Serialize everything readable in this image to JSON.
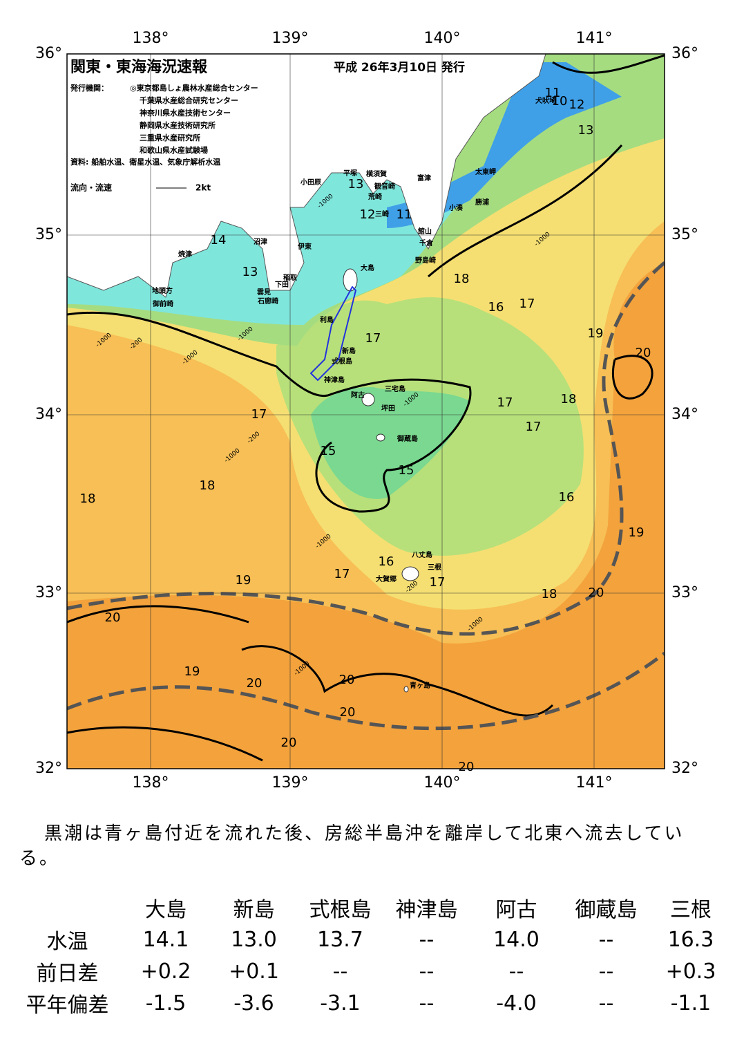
{
  "header": {
    "title": "関東・東海海況速報",
    "date": "平成 26年3月10日 発行",
    "issuer_label": "発行機関：",
    "issuers": [
      "◎東京都島しょ農林水産総合センター",
      "千葉県水産総合研究センター",
      "神奈川県水産技術センター",
      "静岡県水産技術研究所",
      "三重県水産研究所",
      "和歌山県水産試験場"
    ],
    "source": "資料: 船舶水温、衛星水温、気象庁解析水温",
    "legend": "流向・流速",
    "legend_speed": "2kt"
  },
  "map": {
    "lon_labels": [
      "138°",
      "139°",
      "140°",
      "141°"
    ],
    "lat_labels": [
      "36°",
      "35°",
      "34°",
      "33°",
      "32°"
    ],
    "places": [
      "小田原",
      "平塚",
      "横須賀",
      "観音崎",
      "富津",
      "太東岬",
      "荒崎",
      "三崎",
      "小湊",
      "勝浦",
      "館山",
      "千倉",
      "野島崎",
      "犬吠埼",
      "沼津",
      "焼津",
      "伊東",
      "稲取",
      "下田",
      "雲見",
      "石廊崎",
      "地頭方",
      "御前崎",
      "大島",
      "利島",
      "新島",
      "式根島",
      "神津島",
      "三宅島",
      "阿古",
      "坪田",
      "御蔵島",
      "八丈島",
      "三根",
      "大賀郷",
      "青ヶ島"
    ],
    "contour_labels": [
      "11",
      "10",
      "12",
      "13",
      "13",
      "12",
      "11",
      "14",
      "13",
      "18",
      "16",
      "17",
      "19",
      "20",
      "17",
      "17",
      "18",
      "17",
      "17",
      "15",
      "15",
      "18",
      "18",
      "16",
      "19",
      "16",
      "17",
      "17",
      "19",
      "18",
      "20",
      "20",
      "19",
      "20",
      "20",
      "20",
      "20",
      "20"
    ],
    "depth_labels": [
      "-1000",
      "-1000",
      "-1000",
      "-200",
      "-1000",
      "-1000",
      "-200",
      "-1000",
      "-1000",
      "-1000",
      "-1000",
      "-1000",
      "-200"
    ]
  },
  "summary": "黒潮は青ヶ島付近を流れた後、房総半島沖を離岸して北東へ流去している。",
  "table": {
    "header": [
      "大島",
      "新島",
      "式根島",
      "神津島",
      "阿古",
      "御蔵島",
      "三根"
    ],
    "rows": [
      {
        "label": "水温",
        "cells": [
          "14.1",
          "13.0",
          "13.7",
          "--",
          "14.0",
          "--",
          "16.3"
        ]
      },
      {
        "label": "前日差",
        "cells": [
          "+0.2",
          "+0.1",
          "--",
          "--",
          "--",
          "--",
          "+0.3"
        ]
      },
      {
        "label": "平年偏差",
        "cells": [
          "-1.5",
          "-3.6",
          "-3.1",
          "--",
          "-4.0",
          "--",
          "-1.1"
        ]
      }
    ]
  }
}
